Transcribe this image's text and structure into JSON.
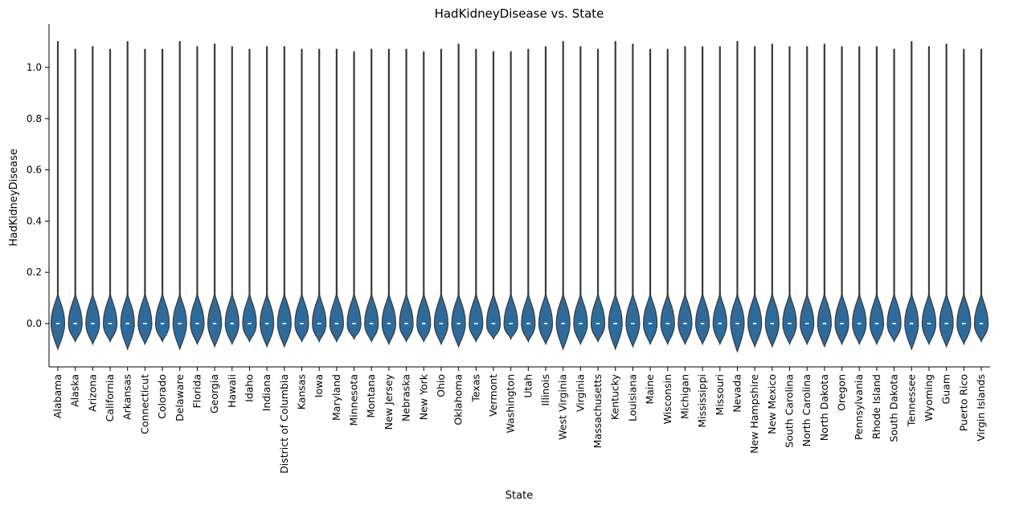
{
  "chart_data": {
    "type": "violin",
    "title": "HadKidneyDisease vs. State",
    "xlabel": "State",
    "ylabel": "HadKidneyDisease",
    "ylim": [
      -0.17,
      1.17
    ],
    "yticks": [
      0.0,
      0.2,
      0.4,
      0.6,
      0.8,
      1.0
    ],
    "ytick_labels": [
      "0.0",
      "0.2",
      "0.4",
      "0.6",
      "0.8",
      "1.0"
    ],
    "grid": false,
    "categories": [
      "Alabama",
      "Alaska",
      "Arizona",
      "California",
      "Arkansas",
      "Connecticut",
      "Colorado",
      "Delaware",
      "Florida",
      "Georgia",
      "Hawaii",
      "Idaho",
      "Indiana",
      "District of Columbia",
      "Kansas",
      "Iowa",
      "Maryland",
      "Minnesota",
      "Montana",
      "New Jersey",
      "Nebraska",
      "New York",
      "Ohio",
      "Oklahoma",
      "Texas",
      "Vermont",
      "Washington",
      "Utah",
      "Illinois",
      "West Virginia",
      "Virginia",
      "Massachusetts",
      "Kentucky",
      "Louisiana",
      "Maine",
      "Wisconsin",
      "Michigan",
      "Mississippi",
      "Missouri",
      "Nevada",
      "New Hampshire",
      "New Mexico",
      "South Carolina",
      "North Carolina",
      "North Dakota",
      "Oregon",
      "Pennsylvania",
      "Rhode Island",
      "South Dakota",
      "Tennessee",
      "Wyoming",
      "Guam",
      "Puerto Rico",
      "Virgin Islands"
    ],
    "median": [
      0,
      0,
      0,
      0,
      0,
      0,
      0,
      0,
      0,
      0,
      0,
      0,
      0,
      0,
      0,
      0,
      0,
      0,
      0,
      0,
      0,
      0,
      0,
      0,
      0,
      0,
      0,
      0,
      0,
      0,
      0,
      0,
      0,
      0,
      0,
      0,
      0,
      0,
      0,
      0,
      0,
      0,
      0,
      0,
      0,
      0,
      0,
      0,
      0,
      0,
      0,
      0,
      0,
      0
    ],
    "min_extent": [
      -0.1,
      -0.07,
      -0.08,
      -0.07,
      -0.1,
      -0.08,
      -0.07,
      -0.1,
      -0.08,
      -0.09,
      -0.08,
      -0.07,
      -0.09,
      -0.09,
      -0.07,
      -0.07,
      -0.07,
      -0.06,
      -0.07,
      -0.08,
      -0.07,
      -0.07,
      -0.08,
      -0.09,
      -0.07,
      -0.06,
      -0.06,
      -0.07,
      -0.08,
      -0.1,
      -0.08,
      -0.07,
      -0.1,
      -0.09,
      -0.08,
      -0.08,
      -0.08,
      -0.08,
      -0.08,
      -0.11,
      -0.09,
      -0.09,
      -0.08,
      -0.08,
      -0.09,
      -0.08,
      -0.08,
      -0.08,
      -0.07,
      -0.1,
      -0.08,
      -0.09,
      -0.08,
      -0.07
    ],
    "max_extent": [
      1.1,
      1.07,
      1.08,
      1.07,
      1.1,
      1.07,
      1.07,
      1.1,
      1.08,
      1.09,
      1.08,
      1.07,
      1.08,
      1.08,
      1.07,
      1.07,
      1.07,
      1.06,
      1.07,
      1.07,
      1.07,
      1.06,
      1.07,
      1.09,
      1.07,
      1.06,
      1.06,
      1.07,
      1.08,
      1.1,
      1.08,
      1.07,
      1.1,
      1.09,
      1.07,
      1.07,
      1.08,
      1.08,
      1.08,
      1.1,
      1.08,
      1.09,
      1.08,
      1.08,
      1.09,
      1.08,
      1.08,
      1.08,
      1.07,
      1.1,
      1.08,
      1.09,
      1.07,
      1.07
    ],
    "color": "#2e6b9a",
    "outline_color": "#3a3a3a",
    "median_color": "#ffffff"
  }
}
